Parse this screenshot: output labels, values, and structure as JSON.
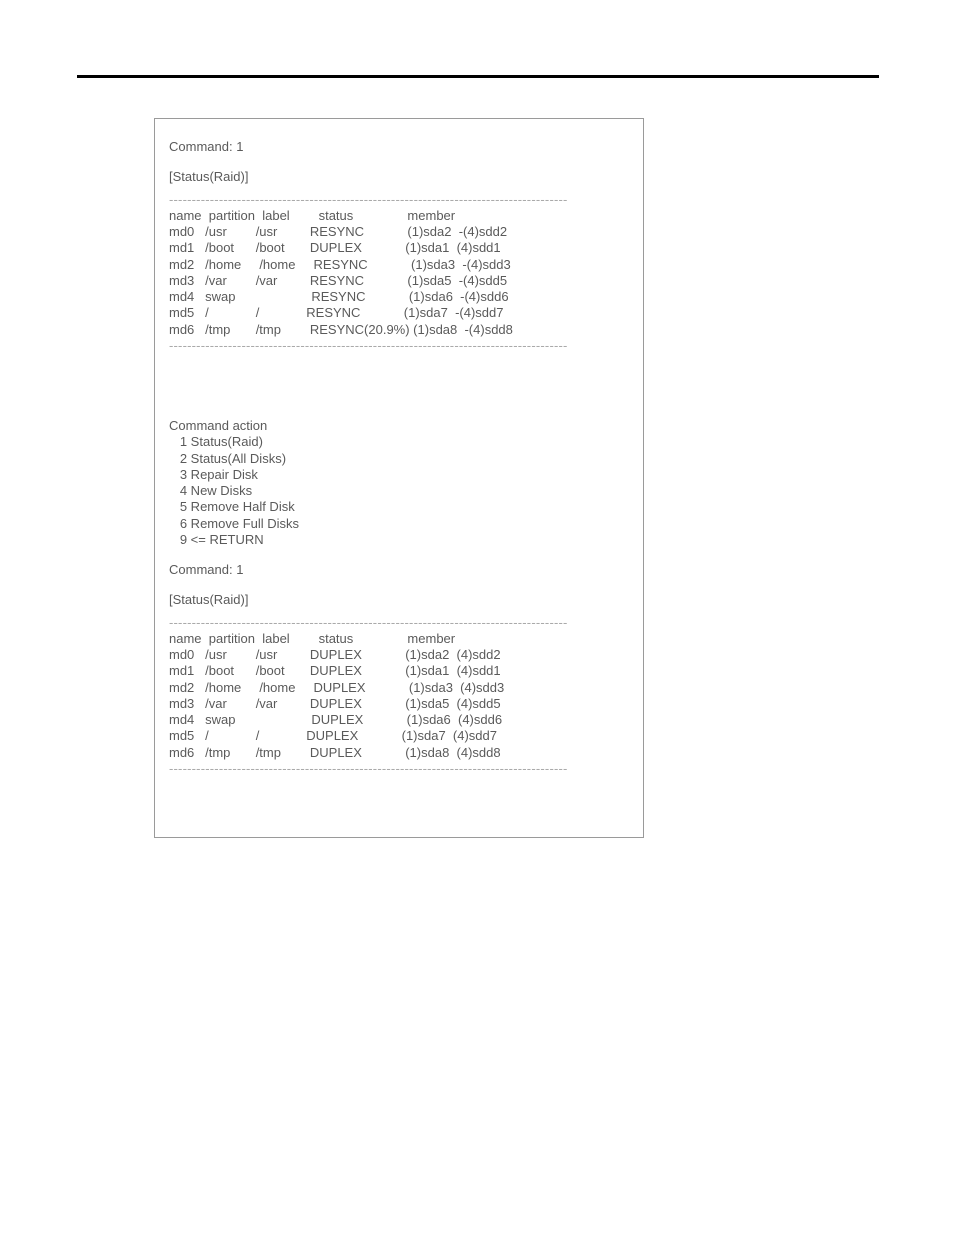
{
  "section1": {
    "command_line": "Command: 1",
    "title": "[Status(Raid)]",
    "dashes": "----------------------------------------------------------------------------------------",
    "header": "name  partition  label        status               member",
    "rows": [
      "md0   /usr        /usr         RESYNC            (1)sda2  -(4)sdd2",
      "md1   /boot      /boot       DUPLEX            (1)sda1  (4)sdd1",
      "md2   /home     /home     RESYNC            (1)sda3  -(4)sdd3",
      "md3   /var        /var         RESYNC            (1)sda5  -(4)sdd5",
      "md4   swap                     RESYNC            (1)sda6  -(4)sdd6",
      "md5   /             /             RESYNC            (1)sda7  -(4)sdd7",
      "md6   /tmp       /tmp        RESYNC(20.9%) (1)sda8  -(4)sdd8"
    ]
  },
  "command_action": {
    "title": "Command action",
    "items": [
      "   1 Status(Raid)",
      "   2 Status(All Disks)",
      "   3 Repair Disk",
      "   4 New Disks",
      "   5 Remove Half Disk",
      "   6 Remove Full Disks",
      "   9 <= RETURN"
    ]
  },
  "section2": {
    "command_line": "Command: 1",
    "title": "[Status(Raid)]",
    "dashes": "----------------------------------------------------------------------------------------",
    "header": "name  partition  label        status               member",
    "rows": [
      "md0   /usr        /usr         DUPLEX            (1)sda2  (4)sdd2",
      "md1   /boot      /boot       DUPLEX            (1)sda1  (4)sdd1",
      "md2   /home     /home     DUPLEX            (1)sda3  (4)sdd3",
      "md3   /var        /var         DUPLEX            (1)sda5  (4)sdd5",
      "md4   swap                     DUPLEX            (1)sda6  (4)sdd6",
      "md5   /             /             DUPLEX            (1)sda7  (4)sdd7",
      "md6   /tmp       /tmp        DUPLEX            (1)sda8  (4)sdd8"
    ]
  }
}
